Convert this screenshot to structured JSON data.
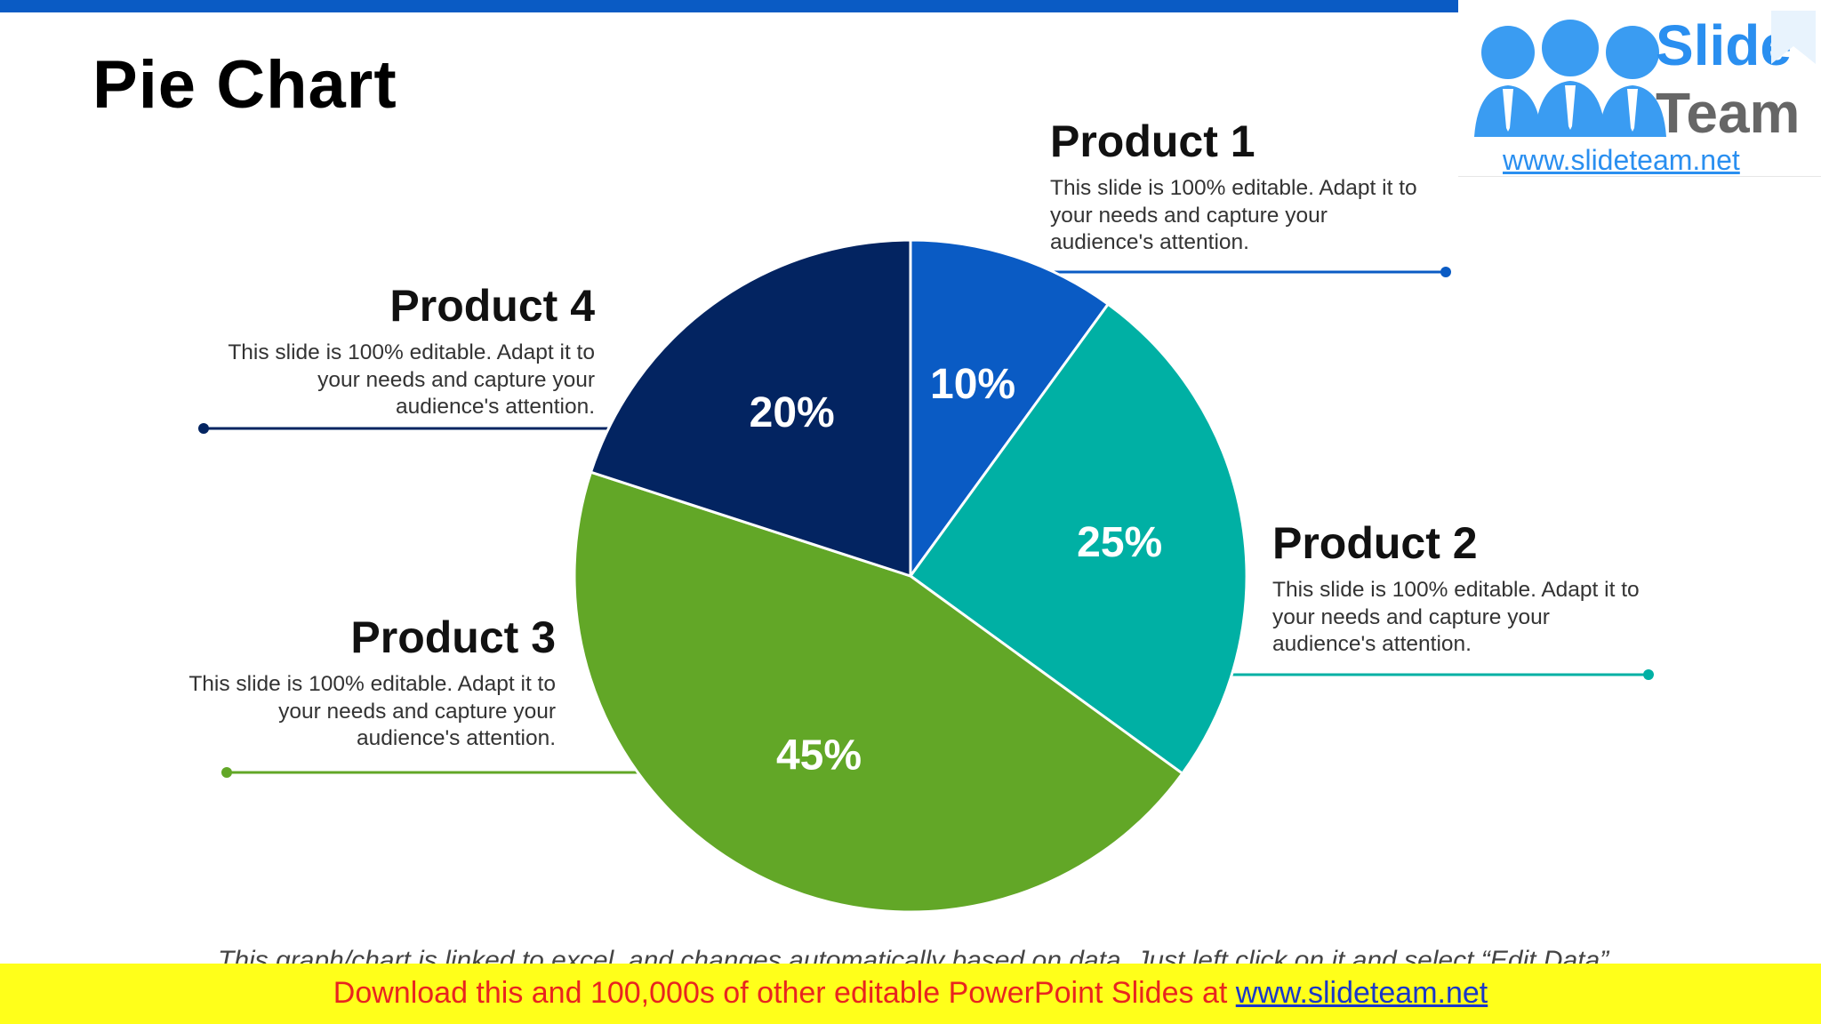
{
  "slide": {
    "title": "Pie Chart"
  },
  "logo": {
    "brand_top": "Slide",
    "brand_bottom": "Team",
    "url": "www.slideteam.net"
  },
  "products": [
    {
      "name": "Product 1",
      "description": "This slide is 100% editable. Adapt it to your needs and capture your audience's attention."
    },
    {
      "name": "Product 2",
      "description": "This slide is 100% editable. Adapt it to your needs and capture your audience's attention."
    },
    {
      "name": "Product 3",
      "description": "This slide is 100% editable. Adapt it to your needs and capture your audience's attention."
    },
    {
      "name": "Product 4",
      "description": "This slide is 100% editable. Adapt it to your needs and capture your audience's attention."
    }
  ],
  "chart_data": {
    "type": "pie",
    "title": "",
    "categories": [
      "Product 1",
      "Product 2",
      "Product 3",
      "Product 4"
    ],
    "values": [
      10,
      25,
      45,
      20
    ],
    "labels": [
      "10%",
      "25%",
      "45%",
      "20%"
    ],
    "colors": [
      "#0a5bc4",
      "#00b0a4",
      "#62a727",
      "#032461"
    ],
    "start_angle": "12 o'clock",
    "direction": "clockwise",
    "legend": "none"
  },
  "footer": {
    "note": "This graph/chart is linked to excel, and changes automatically based on data. Just left click on it and select “Edit Data”.",
    "download_prefix": "Download this and 100,000s of other editable PowerPoint Slides at ",
    "download_link": "www.slideteam.net"
  }
}
